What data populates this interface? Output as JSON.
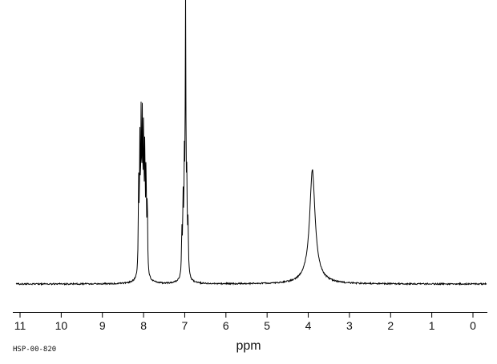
{
  "chart_data": {
    "type": "line",
    "title": "",
    "xlabel": "ppm",
    "ylabel": "",
    "id_label": "HSP-00-820",
    "line_color": "#000000",
    "background": "#ffffff",
    "x_axis": {
      "min": 0,
      "max": 11,
      "reversed": true,
      "unit": "ppm",
      "ticks": [
        11,
        10,
        9,
        8,
        7,
        6,
        5,
        4,
        3,
        2,
        1,
        0
      ]
    },
    "peak_groups": [
      {
        "center_ppm": 8.0,
        "shape": "multiplet",
        "rel_height": 0.54
      },
      {
        "center_ppm": 7.0,
        "shape": "multiplet",
        "rel_height": 1.0
      },
      {
        "center_ppm": 3.9,
        "shape": "broad",
        "rel_height": 0.41
      }
    ],
    "peaks": [
      {
        "ppm": 8.12,
        "height": 0.34,
        "hwhm": 0.01
      },
      {
        "ppm": 8.09,
        "height": 0.47,
        "hwhm": 0.01
      },
      {
        "ppm": 8.06,
        "height": 0.54,
        "hwhm": 0.01
      },
      {
        "ppm": 8.03,
        "height": 0.52,
        "hwhm": 0.01
      },
      {
        "ppm": 8.0,
        "height": 0.48,
        "hwhm": 0.01
      },
      {
        "ppm": 7.97,
        "height": 0.44,
        "hwhm": 0.01
      },
      {
        "ppm": 7.94,
        "height": 0.38,
        "hwhm": 0.01
      },
      {
        "ppm": 7.91,
        "height": 0.28,
        "hwhm": 0.01
      },
      {
        "ppm": 8.02,
        "height": 0.06,
        "hwhm": 0.08
      },
      {
        "ppm": 7.07,
        "height": 0.16,
        "hwhm": 0.01
      },
      {
        "ppm": 7.04,
        "height": 0.26,
        "hwhm": 0.01
      },
      {
        "ppm": 7.01,
        "height": 0.36,
        "hwhm": 0.01
      },
      {
        "ppm": 6.98,
        "height": 1.0,
        "hwhm": 0.01
      },
      {
        "ppm": 6.95,
        "height": 0.3,
        "hwhm": 0.01
      },
      {
        "ppm": 6.92,
        "height": 0.18,
        "hwhm": 0.01
      },
      {
        "ppm": 6.99,
        "height": 0.07,
        "hwhm": 0.06
      },
      {
        "ppm": 3.9,
        "height": 0.4,
        "hwhm": 0.075
      },
      {
        "ppm": 3.9,
        "height": 0.05,
        "hwhm": 0.2
      }
    ]
  }
}
